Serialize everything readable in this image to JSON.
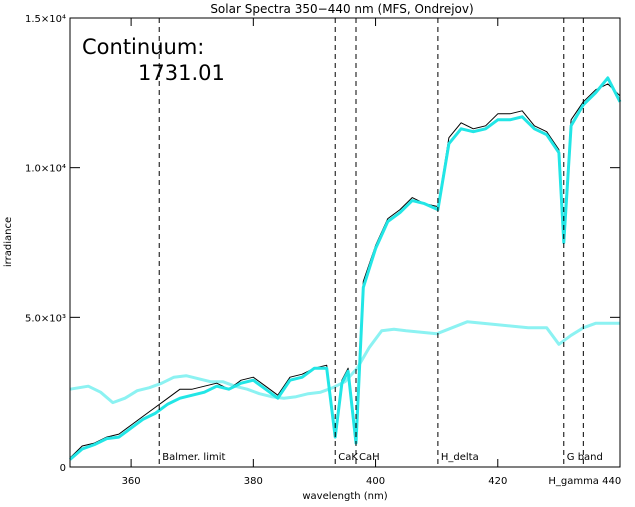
{
  "chart_data": {
    "type": "line",
    "title": "Solar Spectra 350−440 nm (MFS, Ondrejov)",
    "xlabel": "wavelength (nm)",
    "ylabel": "irradiance",
    "xlim": [
      350,
      440
    ],
    "ylim": [
      0,
      15000
    ],
    "x_ticks": [
      360,
      380,
      400,
      420,
      440
    ],
    "x_tick_labels": [
      "360",
      "380",
      "400",
      "420",
      "440"
    ],
    "y_ticks": [
      0,
      5000,
      10000,
      15000
    ],
    "y_tick_labels": [
      "0",
      "5.0×10³",
      "1.0×10⁴",
      "1.5×10⁴"
    ],
    "grid": false,
    "annotation": {
      "label": "Continuum:",
      "value": "1731.01"
    },
    "colors": {
      "observed": "#000000",
      "smoothed": "#22e6e6",
      "continuum": "#8cf2f2",
      "markers": "#000000"
    },
    "markers": [
      {
        "x": 364.6,
        "label": "Balmer. limit"
      },
      {
        "x": 393.4,
        "label": "CaK"
      },
      {
        "x": 396.8,
        "label": "CaH"
      },
      {
        "x": 410.2,
        "label": "H_delta"
      },
      {
        "x": 430.8,
        "label": "G band"
      },
      {
        "x": 434.0,
        "label": "H_gamma 440"
      }
    ],
    "series": [
      {
        "role": "observed",
        "x": [
          350,
          352,
          354,
          356,
          358,
          360,
          362,
          364,
          366,
          368,
          370,
          372,
          374,
          376,
          378,
          380,
          382,
          384,
          386,
          388,
          390,
          392,
          393.4,
          394.5,
          395.5,
          396.8,
          398,
          400,
          402,
          404,
          406,
          408,
          410.2,
          412,
          414,
          416,
          418,
          420,
          422,
          424,
          426,
          428,
          430,
          430.8,
          432,
          434,
          436,
          438,
          440
        ],
        "y": [
          300,
          700,
          800,
          1000,
          1100,
          1400,
          1700,
          2000,
          2300,
          2600,
          2600,
          2700,
          2800,
          2600,
          2900,
          3000,
          2700,
          2400,
          3000,
          3100,
          3300,
          3400,
          1200,
          2900,
          3300,
          900,
          6200,
          7400,
          8300,
          8600,
          9000,
          8800,
          8700,
          11000,
          11500,
          11300,
          11400,
          11800,
          11800,
          11900,
          11400,
          11200,
          10600,
          8000,
          11600,
          12200,
          12600,
          12800,
          12400
        ]
      },
      {
        "role": "smoothed",
        "x": [
          350,
          352,
          354,
          356,
          358,
          360,
          362,
          364,
          366,
          368,
          370,
          372,
          374,
          376,
          378,
          380,
          382,
          384,
          386,
          388,
          390,
          392,
          393.4,
          394.5,
          395.5,
          396.8,
          398,
          400,
          402,
          404,
          406,
          408,
          410.2,
          412,
          414,
          416,
          418,
          420,
          422,
          424,
          426,
          428,
          430,
          430.8,
          432,
          434,
          436,
          438,
          440
        ],
        "y": [
          250,
          600,
          750,
          950,
          1000,
          1300,
          1600,
          1800,
          2100,
          2300,
          2400,
          2500,
          2700,
          2600,
          2800,
          2900,
          2600,
          2300,
          2900,
          3000,
          3300,
          3300,
          1000,
          2800,
          3200,
          800,
          6000,
          7300,
          8200,
          8500,
          8900,
          8800,
          8600,
          10800,
          11300,
          11200,
          11300,
          11600,
          11600,
          11700,
          11300,
          11100,
          10500,
          7500,
          11400,
          12100,
          12500,
          13000,
          12200
        ]
      },
      {
        "role": "continuum",
        "x": [
          350,
          353,
          355,
          357,
          359,
          361,
          363,
          365,
          367,
          369,
          371,
          373,
          375,
          377,
          379,
          381,
          383,
          385,
          387,
          389,
          391,
          393,
          395,
          397,
          399,
          401,
          403,
          405,
          410,
          415,
          420,
          425,
          428,
          430,
          432,
          434,
          436,
          438,
          440
        ],
        "y": [
          2600,
          2700,
          2500,
          2150,
          2300,
          2550,
          2650,
          2800,
          3000,
          3050,
          2950,
          2850,
          2850,
          2700,
          2600,
          2450,
          2350,
          2300,
          2350,
          2450,
          2500,
          2650,
          2850,
          3300,
          4000,
          4550,
          4600,
          4550,
          4450,
          4850,
          4750,
          4650,
          4650,
          4100,
          4400,
          4650,
          4800,
          4800,
          4800
        ]
      }
    ]
  }
}
